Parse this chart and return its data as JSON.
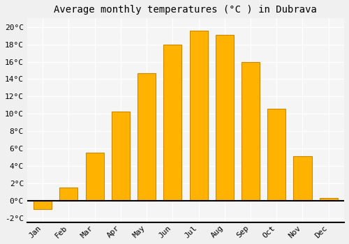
{
  "title": "Average monthly temperatures (°C ) in Dubrava",
  "months": [
    "Jan",
    "Feb",
    "Mar",
    "Apr",
    "May",
    "Jun",
    "Jul",
    "Aug",
    "Sep",
    "Oct",
    "Nov",
    "Dec"
  ],
  "values": [
    -1.0,
    1.5,
    5.5,
    10.3,
    14.7,
    18.0,
    19.6,
    19.1,
    16.0,
    10.6,
    5.1,
    0.3
  ],
  "bar_color": "#FFB300",
  "bar_edge_color": "#CC8800",
  "bar_color_neg": "#FFB300",
  "background_color": "#f0f0f0",
  "plot_bg_color": "#f5f5f5",
  "grid_color": "#ffffff",
  "ylim": [
    -2.5,
    21
  ],
  "yticks": [
    -2,
    0,
    2,
    4,
    6,
    8,
    10,
    12,
    14,
    16,
    18,
    20
  ],
  "ytick_labels": [
    "-2°C",
    "0°C",
    "2°C",
    "4°C",
    "6°C",
    "8°C",
    "10°C",
    "12°C",
    "14°C",
    "16°C",
    "18°C",
    "20°C"
  ],
  "title_fontsize": 10,
  "tick_fontsize": 8,
  "font_family": "monospace"
}
